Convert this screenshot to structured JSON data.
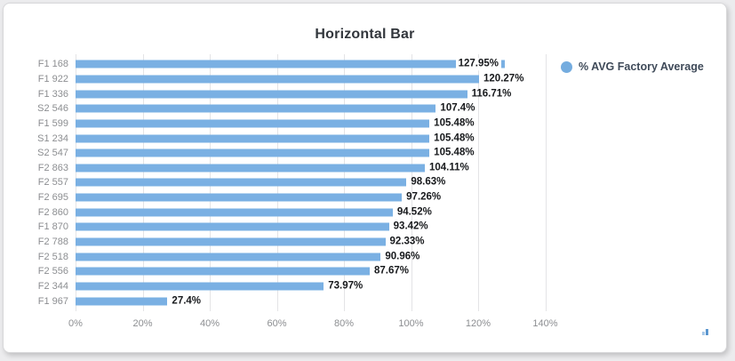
{
  "page": {
    "background_color": "#ececee",
    "card_color": "#ffffff"
  },
  "chart_data": {
    "type": "bar",
    "orientation": "horizontal",
    "title": "Horizontal Bar",
    "categories": [
      "F1 168",
      "F1 922",
      "F1 336",
      "S2 546",
      "F1 599",
      "S1 234",
      "S2 547",
      "F2 863",
      "F2 557",
      "F2 695",
      "F2 860",
      "F1 870",
      "F2 788",
      "F2 518",
      "F2 556",
      "F2 344",
      "F1 967"
    ],
    "values": [
      127.95,
      120.27,
      116.71,
      107.4,
      105.48,
      105.48,
      105.48,
      104.11,
      98.63,
      97.26,
      94.52,
      93.42,
      92.33,
      90.96,
      87.67,
      73.97,
      27.4
    ],
    "value_labels": [
      "127.95%",
      "120.27%",
      "116.71%",
      "107.4%",
      "105.48%",
      "105.48%",
      "105.48%",
      "104.11%",
      "98.63%",
      "97.26%",
      "94.52%",
      "93.42%",
      "92.33%",
      "90.96%",
      "87.67%",
      "73.97%",
      "27.4%"
    ],
    "x_ticks": [
      "0%",
      "20%",
      "40%",
      "60%",
      "80%",
      "100%",
      "120%",
      "140%"
    ],
    "xlim": [
      0,
      140
    ],
    "xlabel": "",
    "ylabel": "",
    "grid": "vertical",
    "bar_color": "#7ab0e3",
    "grid_color": "#e4e4e6",
    "value_label_color": "#17191c",
    "axis_label_color": "#8c8e91",
    "legend": {
      "label": "% AVG Factory Average",
      "position": "right",
      "marker_color": "#74acdf"
    }
  }
}
